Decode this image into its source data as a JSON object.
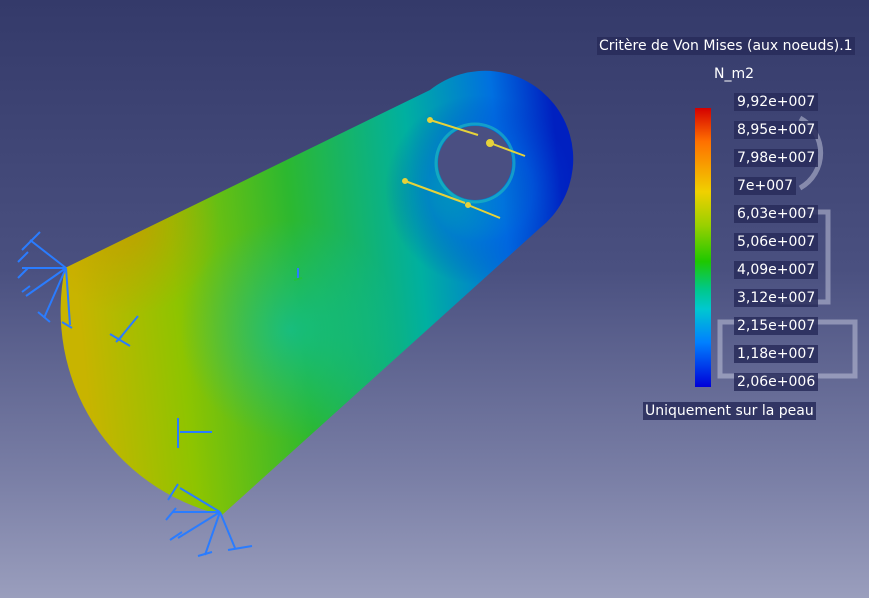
{
  "legend": {
    "title": "Critère de Von Mises (aux noeuds).1",
    "unit": "N_m2",
    "values": [
      "9,92e+007",
      "8,95e+007",
      "7,98e+007",
      "7e+007",
      "6,03e+007",
      "5,06e+007",
      "4,09e+007",
      "3,12e+007",
      "2,15e+007",
      "1,18e+007",
      "2,06e+006"
    ],
    "note": "Uniquement sur la peau"
  },
  "colors": {
    "background_top": "#343a6a",
    "background_bottom": "#9a9ebd",
    "restraint": "#2a7cff",
    "load_arrow": "#e6d23a"
  }
}
